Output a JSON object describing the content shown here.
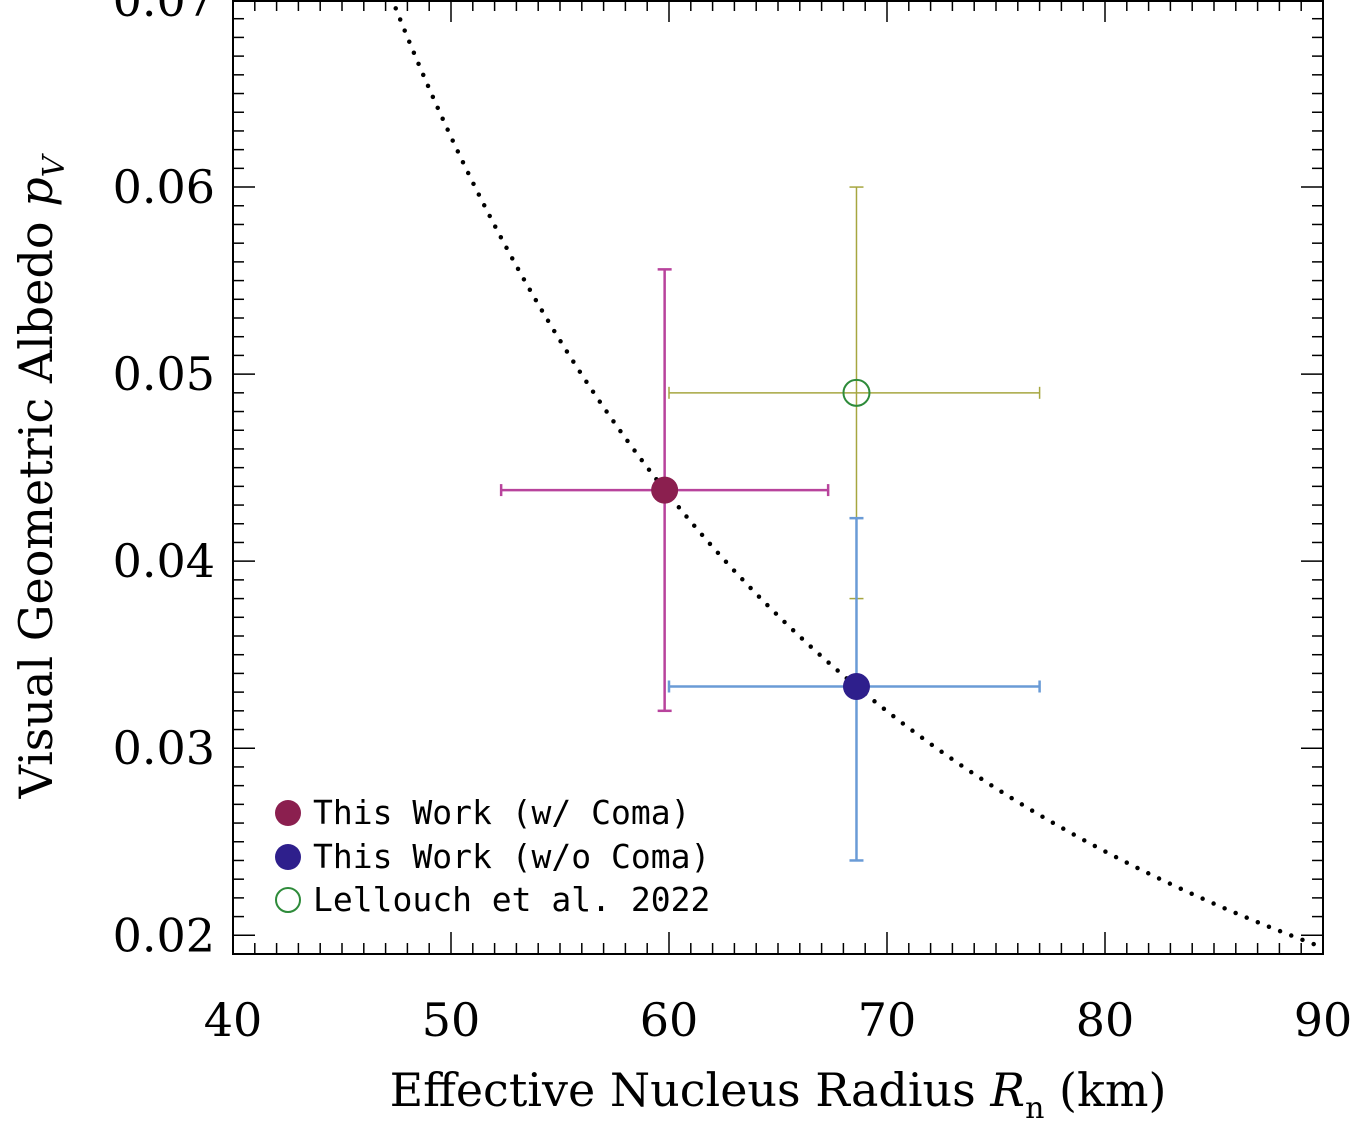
{
  "chart_data": {
    "type": "scatter",
    "xlabel": {
      "main": "Effective Nucleus Radius ",
      "sym": "R",
      "sub": "n",
      "unit": " (km)"
    },
    "ylabel": {
      "main": "Visual Geometric Albedo ",
      "sym": "p",
      "sub": "V"
    },
    "xlim": [
      40,
      90
    ],
    "ylim": [
      0.019,
      0.07
    ],
    "xticks": [
      40,
      50,
      60,
      70,
      80,
      90
    ],
    "xtick_labels": [
      "40",
      "50",
      "60",
      "70",
      "80",
      "90"
    ],
    "yticks": [
      0.02,
      0.03,
      0.04,
      0.05,
      0.06,
      0.07
    ],
    "ytick_labels": [
      "0.02",
      "0.03",
      "0.04",
      "0.05",
      "0.06",
      "0.07"
    ],
    "grid": false,
    "legend_position": "bottom-left",
    "series": [
      {
        "name": "This Work (w/ Coma)",
        "marker": "filled-circle",
        "color": "#8B1F4F",
        "errcolor": "#B8439C",
        "x": 59.8,
        "y": 0.0438,
        "xerr": [
          52.3,
          67.3
        ],
        "yerr": [
          0.032,
          0.0556
        ]
      },
      {
        "name": "This Work (w/o Coma)",
        "marker": "filled-circle",
        "color": "#2E1F8C",
        "errcolor": "#6A9BD6",
        "x": 68.6,
        "y": 0.0333,
        "xerr": [
          60.0,
          77.0
        ],
        "yerr": [
          0.024,
          0.0423
        ]
      },
      {
        "name": "Lellouch et al. 2022",
        "marker": "open-circle",
        "color": "#2E8B3A",
        "errcolor": "#A6A640",
        "x": 68.6,
        "y": 0.049,
        "xerr": [
          60.0,
          77.0
        ],
        "yerr": [
          0.038,
          0.06
        ]
      }
    ],
    "curve": {
      "style": "dotted",
      "color": "#000000",
      "relation": "p_V * R_n^2 = const",
      "const": 156.7
    }
  }
}
